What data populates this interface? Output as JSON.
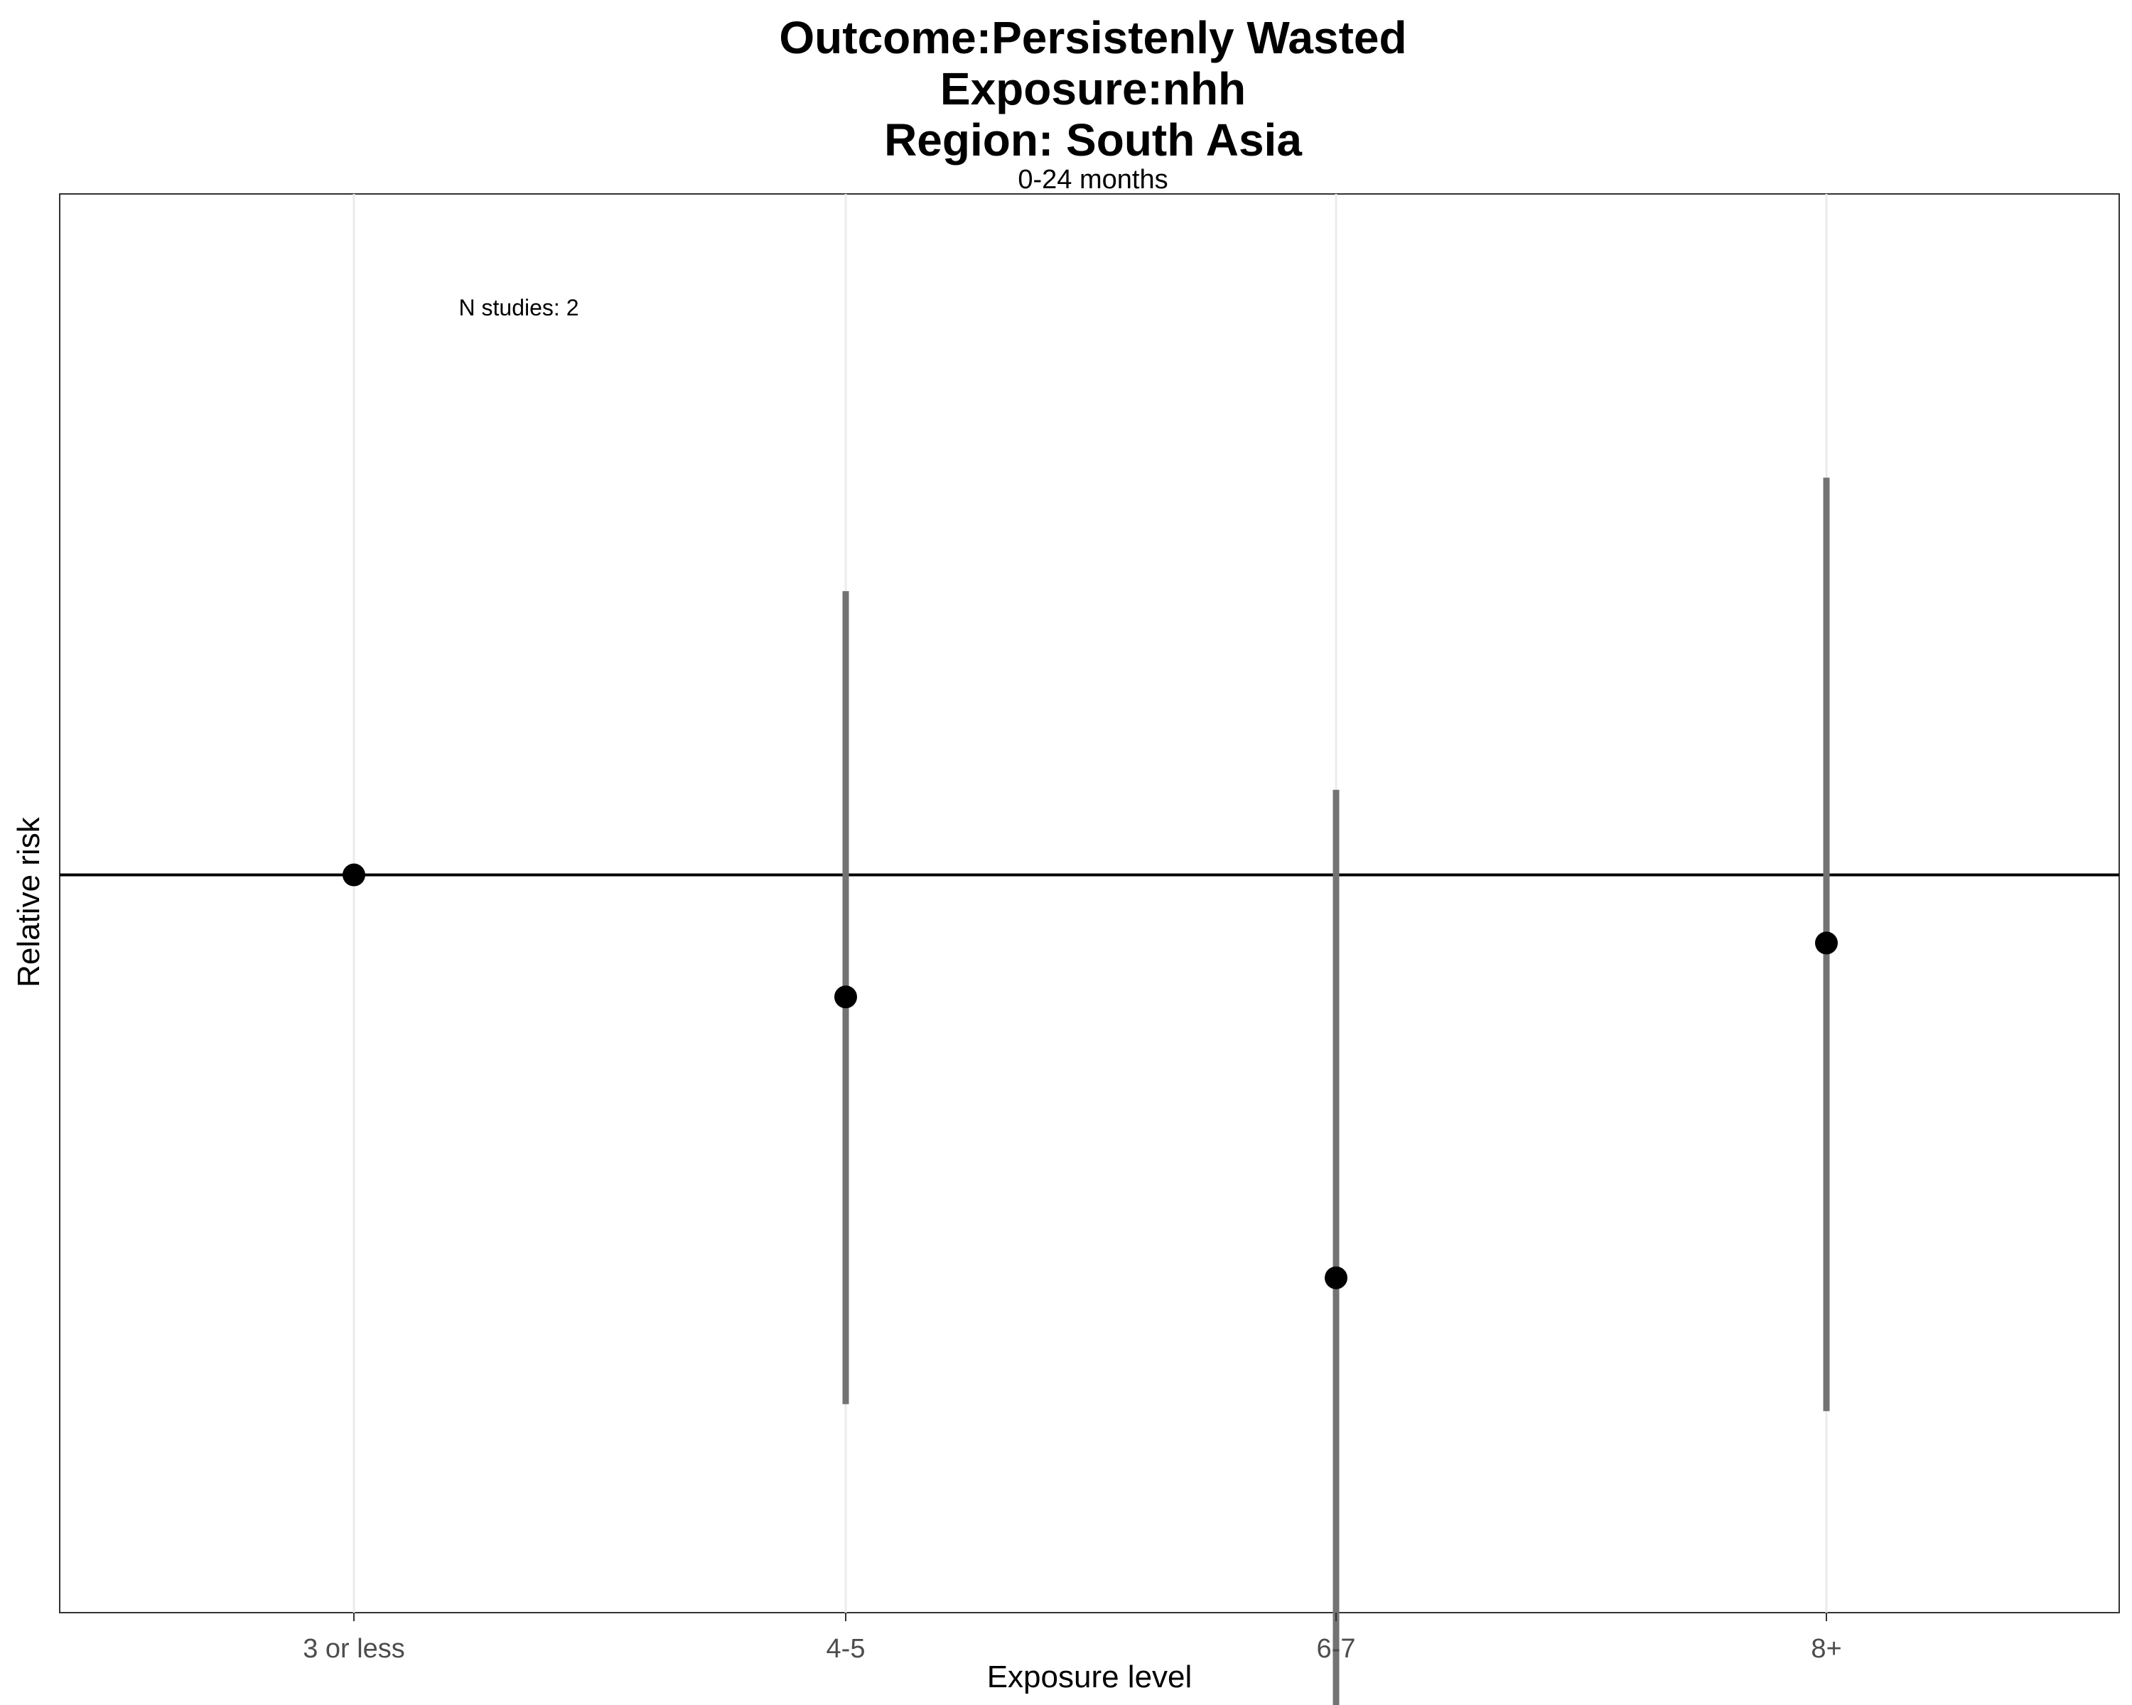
{
  "chart_data": {
    "type": "scatter",
    "title_lines": [
      "Outcome:Persistenly Wasted",
      "Exposure:nhh",
      "Region: South Asia"
    ],
    "subtitle": "0-24 months",
    "xlabel": "Exposure level",
    "ylabel": "Relative risk",
    "categories": [
      "3 or less",
      "4-5",
      "6-7",
      "8+"
    ],
    "annotation": "N studies: 2",
    "reference_line": 1.0,
    "ylim": [
      0.48,
      1.48
    ],
    "y_ticks_shown": false,
    "grid": "vertical major only",
    "estimates": [
      1.0,
      0.914,
      0.716,
      0.952
    ],
    "ci_lower": [
      null,
      0.627,
      0.37,
      0.622
    ],
    "ci_upper": [
      null,
      1.2,
      1.06,
      1.28
    ],
    "colors": {
      "point": "#000000",
      "ci": "#737373",
      "reference": "#000000",
      "grid": "#ebebeb"
    }
  }
}
